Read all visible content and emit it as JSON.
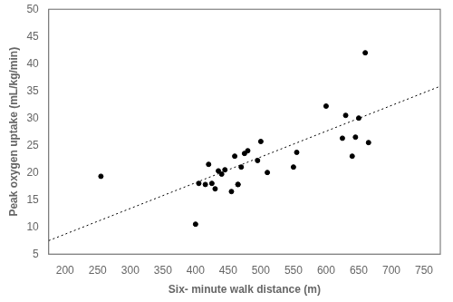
{
  "chart_data": {
    "type": "scatter",
    "xlabel": "Six- minute walk distance (m)",
    "ylabel": "Peak oxygen uptake (mL/kg/min)",
    "series": [
      {
        "type": "scatter",
        "color": "#000000",
        "marker": "circle",
        "x": [
          255,
          400,
          405,
          415,
          420,
          425,
          430,
          435,
          440,
          445,
          455,
          460,
          465,
          465,
          470,
          475,
          480,
          495,
          500,
          510,
          550,
          555,
          600,
          625,
          630,
          640,
          645,
          650,
          660,
          665
        ],
        "values": [
          19.3,
          10.5,
          18.0,
          17.8,
          21.5,
          18.0,
          17.0,
          20.3,
          19.7,
          20.5,
          16.5,
          23.0,
          17.8,
          17.8,
          21.0,
          23.5,
          24.0,
          22.2,
          25.7,
          20.0,
          21.0,
          23.7,
          32.2,
          26.3,
          30.5,
          23.0,
          26.5,
          30.0,
          42.0,
          25.5
        ]
      },
      {
        "type": "line",
        "color": "#000000",
        "line_style": "dotted",
        "x": [
          175,
          775
        ],
        "values": [
          7.4775,
          35.8575
        ]
      }
    ],
    "xlim": [
      175,
      775
    ],
    "ylim": [
      5,
      50
    ],
    "xticks": [
      200,
      250,
      300,
      350,
      400,
      450,
      500,
      550,
      600,
      650,
      700,
      750
    ],
    "yticks": [
      5,
      10,
      15,
      20,
      25,
      30,
      35,
      40,
      45,
      50
    ],
    "grid": false
  }
}
